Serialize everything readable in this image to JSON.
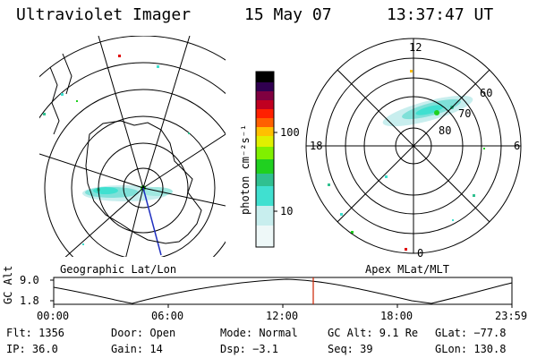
{
  "header": {
    "instrument": "Ultraviolet Imager",
    "date": "15 May 07",
    "time": "13:37:47 UT"
  },
  "colorbar": {
    "unit_label": "photon cm⁻²s⁻¹",
    "ticks": [
      "100",
      "10"
    ],
    "scale": "log",
    "colors": [
      "#ffffff",
      "#c8eeee",
      "#40e0d0",
      "#30c090",
      "#20d020",
      "#80f000",
      "#e0f000",
      "#ffc000",
      "#ff6000",
      "#ff2000",
      "#c00020",
      "#800040",
      "#300050",
      "#000000"
    ]
  },
  "left_map": {
    "caption": "Geographic Lat/Lon"
  },
  "right_map": {
    "caption": "Apex MLat/MLT",
    "mlt_labels": {
      "top": "12",
      "left": "18",
      "right": "6",
      "bottom": "0"
    },
    "lat_labels": [
      "60",
      "70",
      "80"
    ]
  },
  "orbit": {
    "ylabel": "GC Alt",
    "yticks": [
      "9.0",
      "1.8"
    ],
    "xticks": [
      "00:00",
      "06:00",
      "12:00",
      "18:00",
      "23:59"
    ],
    "marker_color": "#cc2200"
  },
  "info": {
    "flt": "Flt: 1356",
    "door": "Door: Open",
    "mode": "Mode: Normal",
    "gcalt": "GC Alt: 9.1 Re",
    "glat": "GLat: −77.8",
    "ip": "IP: 36.0",
    "gain": "Gain: 14",
    "dsp": "Dsp:  −3.1",
    "seq": "Seq: 39",
    "glon": "GLon: 130.8"
  }
}
